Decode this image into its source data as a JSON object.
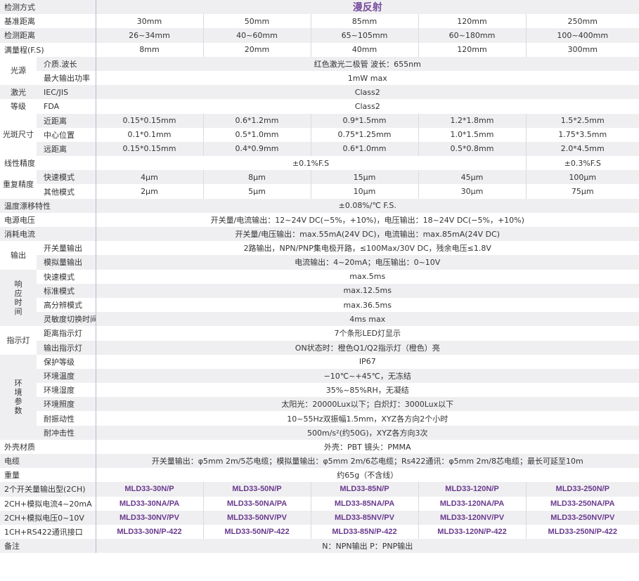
{
  "colors": {
    "title": "#7a4f9e",
    "model_text": "#6a3a8e",
    "stripe": "#efeff1",
    "divider": "#b9b5d3"
  },
  "sections": [
    {
      "label": "检测方式",
      "values": [
        "漫反射"
      ],
      "title": true
    },
    {
      "label": "基准距离",
      "values": [
        "30mm",
        "50mm",
        "85mm",
        "120mm",
        "250mm"
      ]
    },
    {
      "label": "检测距离",
      "values": [
        "26~34mm",
        "40~60mm",
        "65~105mm",
        "60~180mm",
        "100~400mm"
      ]
    },
    {
      "label": "满量程(F.S)",
      "values": [
        "8mm",
        "20mm",
        "40mm",
        "120mm",
        "300mm"
      ]
    },
    {
      "group": "光源",
      "bg": "w",
      "rows": [
        {
          "label": "介质.波长",
          "values": [
            "红色激光二极管  波长：655nm"
          ]
        },
        {
          "label": "最大输出功率",
          "values": [
            "1mW  max"
          ]
        }
      ]
    },
    {
      "group": "激光",
      "bg": "row",
      "rows": [
        {
          "label": "IEC/JIS",
          "values": [
            "Class2"
          ]
        }
      ]
    },
    {
      "group": "等级",
      "bg": "row",
      "rows": [
        {
          "label": "FDA",
          "values": [
            "Class2"
          ]
        }
      ]
    },
    {
      "group": "光斑尺寸",
      "bg": "w",
      "rows": [
        {
          "label": "近距离",
          "values": [
            "0.15*0.15mm",
            "0.6*1.2mm",
            "0.9*1.5mm",
            "1.2*1.8mm",
            "1.5*2.5mm"
          ]
        },
        {
          "label": "中心位置",
          "values": [
            "0.1*0.1mm",
            "0.5*1.0mm",
            "0.75*1.25mm",
            "1.0*1.5mm",
            "1.75*3.5mm"
          ]
        },
        {
          "label": "远距离",
          "values": [
            "0.15*0.15mm",
            "0.4*0.9mm",
            "0.6*1.0mm",
            "0.5*0.8mm",
            "2.0*4.5mm"
          ]
        }
      ]
    },
    {
      "label": "线性精度",
      "values": [
        "±0.1%F.S",
        "±0.3%F.S"
      ]
    },
    {
      "group": "重复精度",
      "bg": "w",
      "rows": [
        {
          "label": "快速模式",
          "values": [
            "4μm",
            "8μm",
            "15μm",
            "45μm",
            "100μm"
          ]
        },
        {
          "label": "其他模式",
          "values": [
            "2μm",
            "5μm",
            "10μm",
            "30μm",
            "75μm"
          ]
        }
      ]
    },
    {
      "label": "温度漂移特性",
      "values": [
        "±0.08%/℃ F.S."
      ]
    },
    {
      "label": "电源电压",
      "values": [
        "开关量/电流输出：12~24V DC(−5%，+10%)，电压输出：18~24V DC(−5%，+10%)"
      ]
    },
    {
      "label": "消耗电流",
      "values": [
        "开关量/电压输出：max.55mA(24V DC)，电流输出：max.85mA(24V DC)"
      ]
    },
    {
      "group": "输出",
      "bg": "w",
      "rows": [
        {
          "label": "开关量输出",
          "values": [
            "2路输出，NPN/PNP集电极开路，≤100Max/30V DC，残余电压≤1.8V"
          ]
        },
        {
          "label": "模拟量输出",
          "values": [
            "电流输出：4~20mA；电压输出：0~10V"
          ]
        }
      ]
    },
    {
      "group": "响应时间",
      "bg": "g",
      "vertical": true,
      "rows": [
        {
          "label": "快速模式",
          "values": [
            "max.5ms"
          ]
        },
        {
          "label": "标准模式",
          "values": [
            "max.12.5ms"
          ]
        },
        {
          "label": "高分辨模式",
          "values": [
            "max.36.5ms"
          ]
        },
        {
          "label": "灵敏度切换时间",
          "values": [
            "4ms  max"
          ]
        }
      ]
    },
    {
      "group": "指示灯",
      "bg": "w",
      "rows": [
        {
          "label": "距离指示灯",
          "values": [
            "7个条形LED灯显示"
          ]
        },
        {
          "label": "输出指示灯",
          "values": [
            "ON状态时：橙色Q1/Q2指示灯（橙色）亮"
          ]
        }
      ]
    },
    {
      "group": "环境参数",
      "bg": "g",
      "vertical": true,
      "rows": [
        {
          "label": "保护等级",
          "values": [
            "IP67"
          ]
        },
        {
          "label": "环境温度",
          "values": [
            "−10℃~+45℃，无冻结"
          ]
        },
        {
          "label": "环境湿度",
          "values": [
            "35%~85%RH，无凝结"
          ]
        },
        {
          "label": "环境照度",
          "values": [
            "太阳光：20000Lux以下；白炽灯：3000Lux以下"
          ]
        },
        {
          "label": "耐振动性",
          "values": [
            "10~55Hz双振幅1.5mm，XYZ各方向2个小时"
          ]
        },
        {
          "label": "耐冲击性",
          "values": [
            "500m/s²(约50G)，XYZ各方向3次"
          ]
        }
      ]
    },
    {
      "label": "外壳材质",
      "values": [
        "外壳：PBT  镜头：PMMA"
      ]
    },
    {
      "label": "电缆",
      "values": [
        "开关量输出：φ5mm  2m/5芯电缆；模拟量输出：φ5mm  2m/6芯电缆；Rs422通讯：φ5mm  2m/8芯电缆；最长可延至10m"
      ]
    },
    {
      "label": "重量",
      "values": [
        "约65g（不含线）"
      ]
    },
    {
      "label": "2个开关量输出型(2CH)",
      "model": true,
      "values": [
        "MLD33-30N/P",
        "MLD33-50N/P",
        "MLD33-85N/P",
        "MLD33-120N/P",
        "MLD33-250N/P"
      ]
    },
    {
      "label": "2CH+模拟电流4~20mA",
      "model": true,
      "values": [
        "MLD33-30NA/PA",
        "MLD33-50NA/PA",
        "MLD33-85NA/PA",
        "MLD33-120NA/PA",
        "MLD33-250NA/PA"
      ]
    },
    {
      "label": "2CH+模拟电压0~10V",
      "model": true,
      "values": [
        "MLD33-30NV/PV",
        "MLD33-50NV/PV",
        "MLD33-85NV/PV",
        "MLD33-120NV/PV",
        "MLD33-250NV/PV"
      ]
    },
    {
      "label": "1CH+RS422通讯接口",
      "model": true,
      "values": [
        "MLD33-30N/P-422",
        "MLD33-50N/P-422",
        "MLD33-85N/P-422",
        "MLD33-120N/P-422",
        "MLD33-250N/P-422"
      ]
    },
    {
      "label": "备注",
      "values": [
        "N：NPN输出   P：PNP输出"
      ]
    }
  ]
}
